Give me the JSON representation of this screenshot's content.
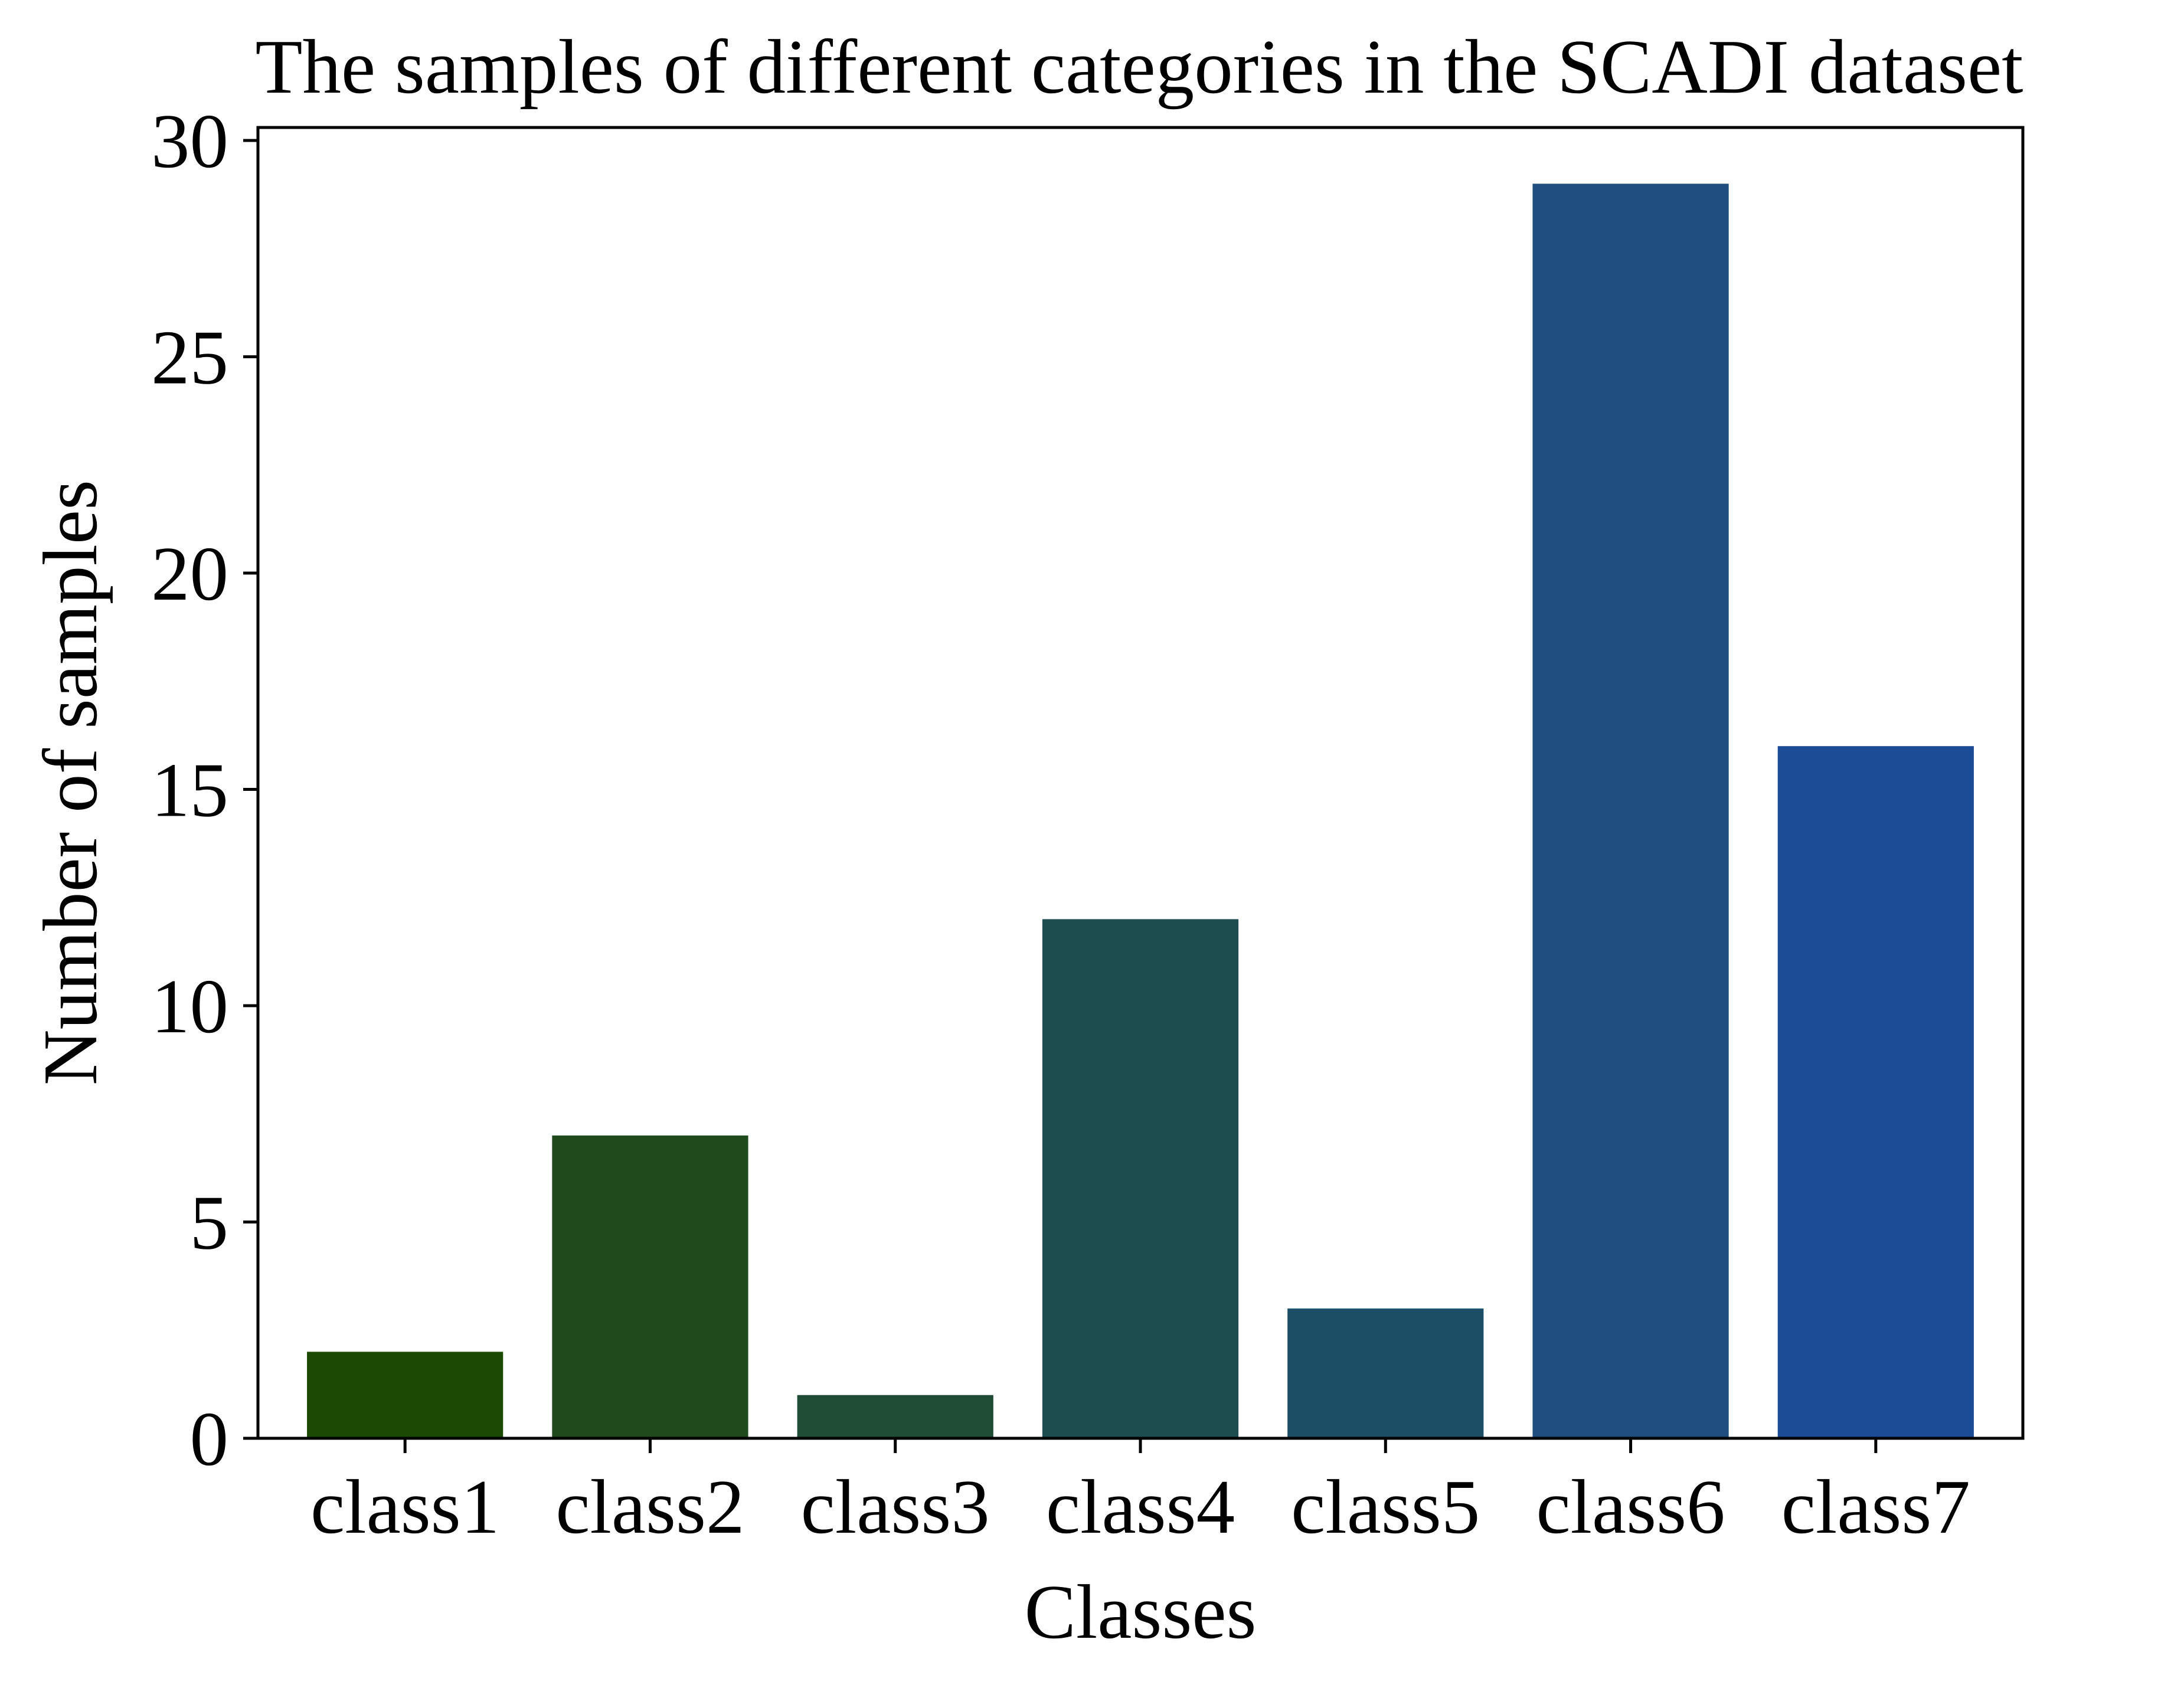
{
  "chart_data": {
    "type": "bar",
    "title": "The samples of different categories in the SCADI dataset",
    "xlabel": "Classes",
    "ylabel": "Number of samples",
    "categories": [
      "class1",
      "class2",
      "class3",
      "class4",
      "class5",
      "class6",
      "class7"
    ],
    "values": [
      2,
      7,
      1,
      12,
      3,
      29,
      16
    ],
    "colors": [
      "#1b4a02",
      "#1e4a1c",
      "#1e4c34",
      "#1d4d4f",
      "#1c4e66",
      "#1d4e7e",
      "#1c4c96"
    ],
    "ylim": [
      0,
      30.3
    ],
    "yticks": [
      0,
      5,
      10,
      15,
      20,
      25,
      30
    ],
    "grid": false,
    "legend": "none"
  }
}
